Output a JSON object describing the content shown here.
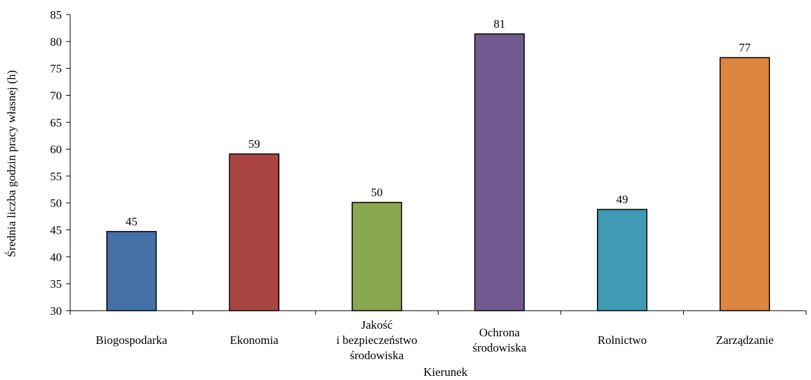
{
  "chart_data": {
    "type": "bar",
    "categories": [
      [
        "Biogospodarka"
      ],
      [
        "Ekonomia"
      ],
      [
        "Jakość",
        "i bezpieczeństwo",
        "środowiska"
      ],
      [
        "Ochrona",
        "środowiska"
      ],
      [
        "Rolnictwo"
      ],
      [
        "Zarządzanie"
      ]
    ],
    "values": [
      44.7,
      59.1,
      50.1,
      81.4,
      48.8,
      77.0
    ],
    "data_labels": [
      "45",
      "59",
      "50",
      "81",
      "49",
      "77"
    ],
    "colors": [
      "#4472a8",
      "#ab4542",
      "#8aa84f",
      "#715a8f",
      "#3e9bb3",
      "#dd843e"
    ],
    "xlabel": "Kierunek",
    "ylabel": "Średnia liczba godzin pracy własnej (h)",
    "ylim": [
      30,
      85
    ],
    "yticks": [
      30,
      35,
      40,
      45,
      50,
      55,
      60,
      65,
      70,
      75,
      80,
      85
    ],
    "grid": false,
    "legend": "none"
  }
}
